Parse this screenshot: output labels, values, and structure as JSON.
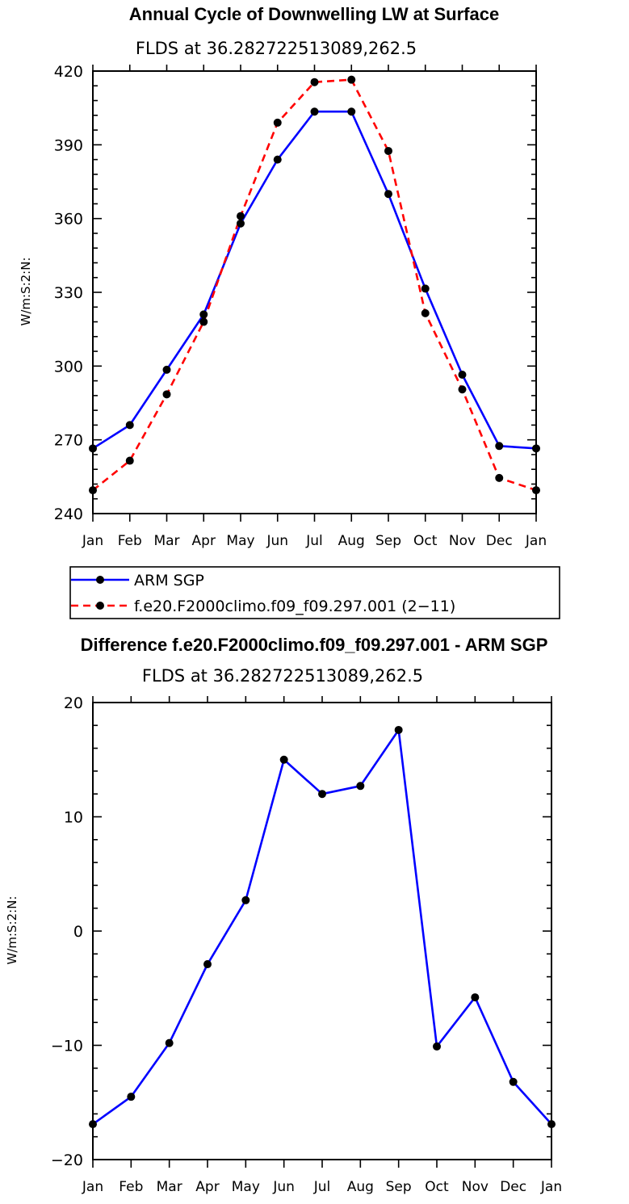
{
  "chart_data": [
    {
      "type": "line",
      "title": "Annual Cycle of Downwelling LW at Surface",
      "subtitle": "FLDS at 36.282722513089,262.5",
      "ylabel": "W/m:S:2:N:",
      "xlabel": "",
      "ylim": [
        240,
        420
      ],
      "yticks": [
        240,
        270,
        300,
        330,
        360,
        390,
        420
      ],
      "categories": [
        "Jan",
        "Feb",
        "Mar",
        "Apr",
        "May",
        "Jun",
        "Jul",
        "Aug",
        "Sep",
        "Oct",
        "Nov",
        "Dec",
        "Jan"
      ],
      "series": [
        {
          "name": "ARM SGP",
          "color": "#0000ff",
          "dash": "solid",
          "values": [
            266.5,
            276,
            298.5,
            321,
            358,
            384,
            403.5,
            403.5,
            370,
            331.5,
            296.5,
            267.5,
            266.5
          ]
        },
        {
          "name": "f.e20.F2000climo.f09_f09.297.001 (2−11)",
          "color": "#ff0000",
          "dash": "dashed",
          "values": [
            249.5,
            261.5,
            288.5,
            318,
            361,
            399,
            415.5,
            416.5,
            387.5,
            321.5,
            290.5,
            254.5,
            249.5
          ]
        }
      ],
      "legend": "below"
    },
    {
      "type": "line",
      "title": "Difference f.e20.F2000climo.f09_f09.297.001 - ARM SGP",
      "subtitle": "FLDS at 36.282722513089,262.5",
      "ylabel": "W/m:S:2:N:",
      "xlabel": "",
      "ylim": [
        -20,
        20
      ],
      "yticks": [
        -20,
        -10,
        0,
        10,
        20
      ],
      "ytick_labels": [
        "−20",
        "−10",
        "0",
        "10",
        "20"
      ],
      "categories": [
        "Jan",
        "Feb",
        "Mar",
        "Apr",
        "May",
        "Jun",
        "Jul",
        "Aug",
        "Sep",
        "Oct",
        "Nov",
        "Dec",
        "Jan"
      ],
      "series": [
        {
          "name": "Difference",
          "color": "#0000ff",
          "dash": "solid",
          "values": [
            -16.9,
            -14.5,
            -9.8,
            -2.9,
            2.7,
            15.0,
            12.0,
            12.7,
            17.6,
            -10.1,
            -5.8,
            -13.2,
            -16.9
          ]
        }
      ]
    }
  ]
}
